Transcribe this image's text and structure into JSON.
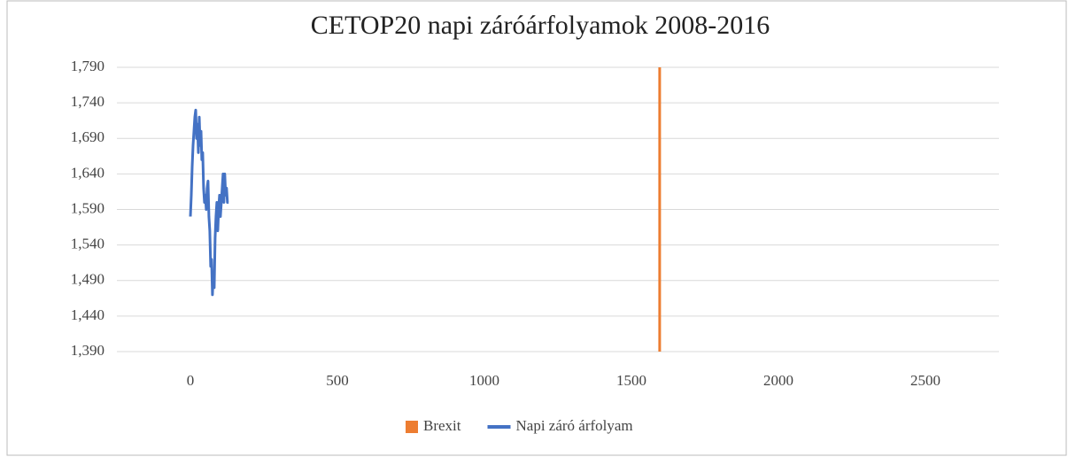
{
  "chart_data": {
    "type": "line",
    "title": "CETOP20 napi záróárfolyamok 2008-2016",
    "series": [
      {
        "name": "Brexit",
        "color": "#ed7d31",
        "x": [
          1596,
          1596
        ],
        "values": [
          1390,
          1790
        ]
      },
      {
        "name": "Napi záró árfolyam",
        "color": "#4472c4",
        "x": [
          0,
          3,
          6,
          9,
          12,
          15,
          18,
          21,
          24,
          27,
          30,
          33,
          36,
          39,
          42,
          45,
          48,
          51,
          54,
          57,
          60,
          63,
          66,
          69,
          72,
          75,
          78,
          81,
          84,
          87,
          90,
          93,
          96,
          99,
          102,
          105,
          108,
          111,
          114,
          117,
          120,
          123,
          126,
          130
        ],
        "values": [
          1580,
          1610,
          1650,
          1680,
          1700,
          1720,
          1730,
          1690,
          1710,
          1670,
          1720,
          1680,
          1700,
          1660,
          1670,
          1620,
          1600,
          1610,
          1590,
          1620,
          1630,
          1580,
          1560,
          1510,
          1520,
          1470,
          1500,
          1480,
          1550,
          1580,
          1600,
          1560,
          1590,
          1610,
          1580,
          1600,
          1620,
          1640,
          1600,
          1640,
          1610,
          1620,
          1600,
          1600
        ]
      }
    ],
    "xlim": [
      -250,
      2750
    ],
    "xticks": [
      0,
      500,
      1000,
      1500,
      2000,
      2500
    ],
    "ylim": [
      1390,
      1790
    ],
    "yticks": [
      {
        "value": 1390,
        "label": "1,390"
      },
      {
        "value": 1440,
        "label": "1,440"
      },
      {
        "value": 1490,
        "label": "1,490"
      },
      {
        "value": 1540,
        "label": "1,540"
      },
      {
        "value": 1590,
        "label": "1,590"
      },
      {
        "value": 1640,
        "label": "1,640"
      },
      {
        "value": 1690,
        "label": "1,690"
      },
      {
        "value": 1740,
        "label": "1,740"
      },
      {
        "value": 1790,
        "label": "1,790"
      }
    ],
    "grid": true,
    "legend": "bottom"
  }
}
